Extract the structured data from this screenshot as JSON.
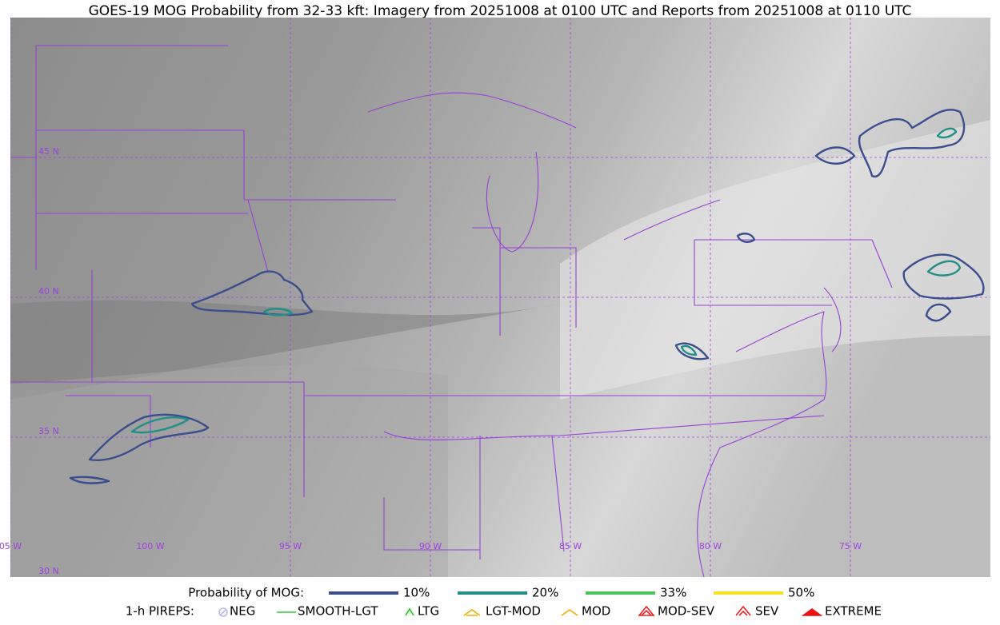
{
  "title": "GOES-19 MOG Probability from 32-33 kft: Imagery from 20251008 at 0100 UTC and Reports from 20251008 at 0110 UTC",
  "lat_labels": [
    "45 N",
    "40 N",
    "35 N",
    "30 N"
  ],
  "lon_labels": [
    "05 W",
    "100 W",
    "95 W",
    "90 W",
    "85 W",
    "80 W",
    "75 W"
  ],
  "legend": {
    "probability": {
      "label": "Probability of MOG:",
      "items": [
        {
          "label": "10%",
          "color": "#3a4d8c"
        },
        {
          "label": "20%",
          "color": "#1f8f88"
        },
        {
          "label": "33%",
          "color": "#4cc35a"
        },
        {
          "label": "50%",
          "color": "#f5e11e"
        }
      ]
    },
    "pireps": {
      "label": "1-h PIREPS:",
      "items": [
        {
          "label": "NEG",
          "color": "#b8b8f0"
        },
        {
          "label": "SMOOTH-LGT",
          "color": "#33cc33"
        },
        {
          "label": "LTG",
          "color": "#11cc11"
        },
        {
          "label": "LGT-MOD",
          "color": "#f0b000"
        },
        {
          "label": "MOD",
          "color": "#f0b000"
        },
        {
          "label": "MOD-SEV",
          "color": "#ee2222"
        },
        {
          "label": "SEV",
          "color": "#ee2222"
        },
        {
          "label": "EXTREME",
          "color": "#ee1111"
        }
      ]
    }
  }
}
